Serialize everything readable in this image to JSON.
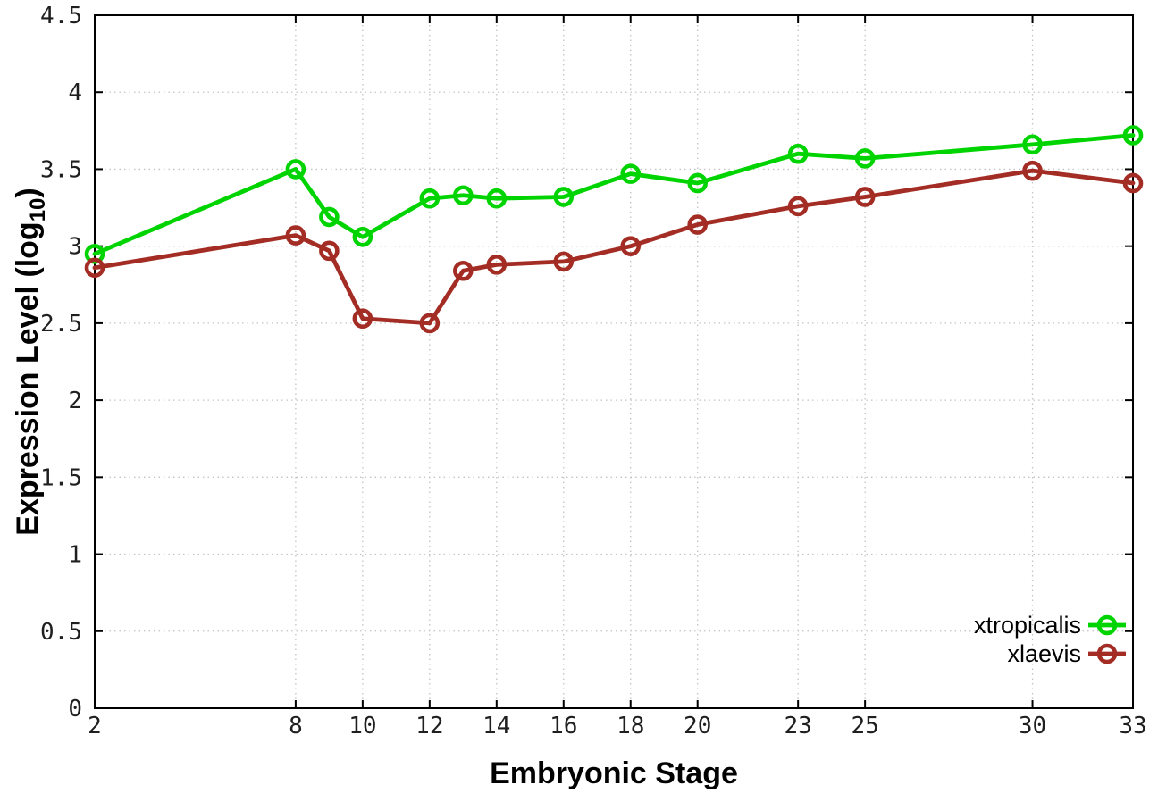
{
  "figure": {
    "background_color": "#ffffff",
    "border_color": "#000000",
    "grid_color": "#c3c3c3",
    "tick_label_color": "#1f1f1f"
  },
  "chart_data": {
    "type": "line",
    "title": "",
    "xlabel": "Embryonic Stage",
    "ylabel": "Expression Level (log10)",
    "ylabel_parts": {
      "base": "Expression Level (log",
      "subscript": "10",
      "close": ")"
    },
    "xlim": [
      2,
      33
    ],
    "ylim": [
      0,
      4.5
    ],
    "grid": true,
    "legend_position": "bottom-right",
    "x_ticks": [
      {
        "value": 2,
        "label": "2"
      },
      {
        "value": 8,
        "label": "8"
      },
      {
        "value": 10,
        "label": "10"
      },
      {
        "value": 12,
        "label": "12"
      },
      {
        "value": 14,
        "label": "14"
      },
      {
        "value": 16,
        "label": "16"
      },
      {
        "value": 18,
        "label": "18"
      },
      {
        "value": 20,
        "label": "20"
      },
      {
        "value": 23,
        "label": "23"
      },
      {
        "value": 25,
        "label": "25"
      },
      {
        "value": 30,
        "label": "30"
      },
      {
        "value": 33,
        "label": "33"
      }
    ],
    "y_ticks": [
      {
        "value": 0,
        "label": "0"
      },
      {
        "value": 0.5,
        "label": "0.5"
      },
      {
        "value": 1,
        "label": "1"
      },
      {
        "value": 1.5,
        "label": "1.5"
      },
      {
        "value": 2,
        "label": "2"
      },
      {
        "value": 2.5,
        "label": "2.5"
      },
      {
        "value": 3,
        "label": "3"
      },
      {
        "value": 3.5,
        "label": "3.5"
      },
      {
        "value": 4,
        "label": "4"
      },
      {
        "value": 4.5,
        "label": "4.5"
      }
    ],
    "x": [
      2,
      8,
      9,
      10,
      12,
      13,
      14,
      16,
      18,
      20,
      23,
      25,
      30,
      33
    ],
    "series": [
      {
        "name": "xtropicalis",
        "color": "#00d400",
        "marker": "open-circle",
        "values": [
          2.95,
          3.5,
          3.19,
          3.06,
          3.31,
          3.33,
          3.31,
          3.32,
          3.47,
          3.41,
          3.6,
          3.57,
          3.66,
          3.72
        ]
      },
      {
        "name": "xlaevis",
        "color": "#a32c24",
        "marker": "open-circle",
        "values": [
          2.86,
          3.07,
          2.97,
          2.53,
          2.5,
          2.84,
          2.88,
          2.9,
          3.0,
          3.14,
          3.26,
          3.32,
          3.49,
          3.41
        ]
      }
    ]
  }
}
